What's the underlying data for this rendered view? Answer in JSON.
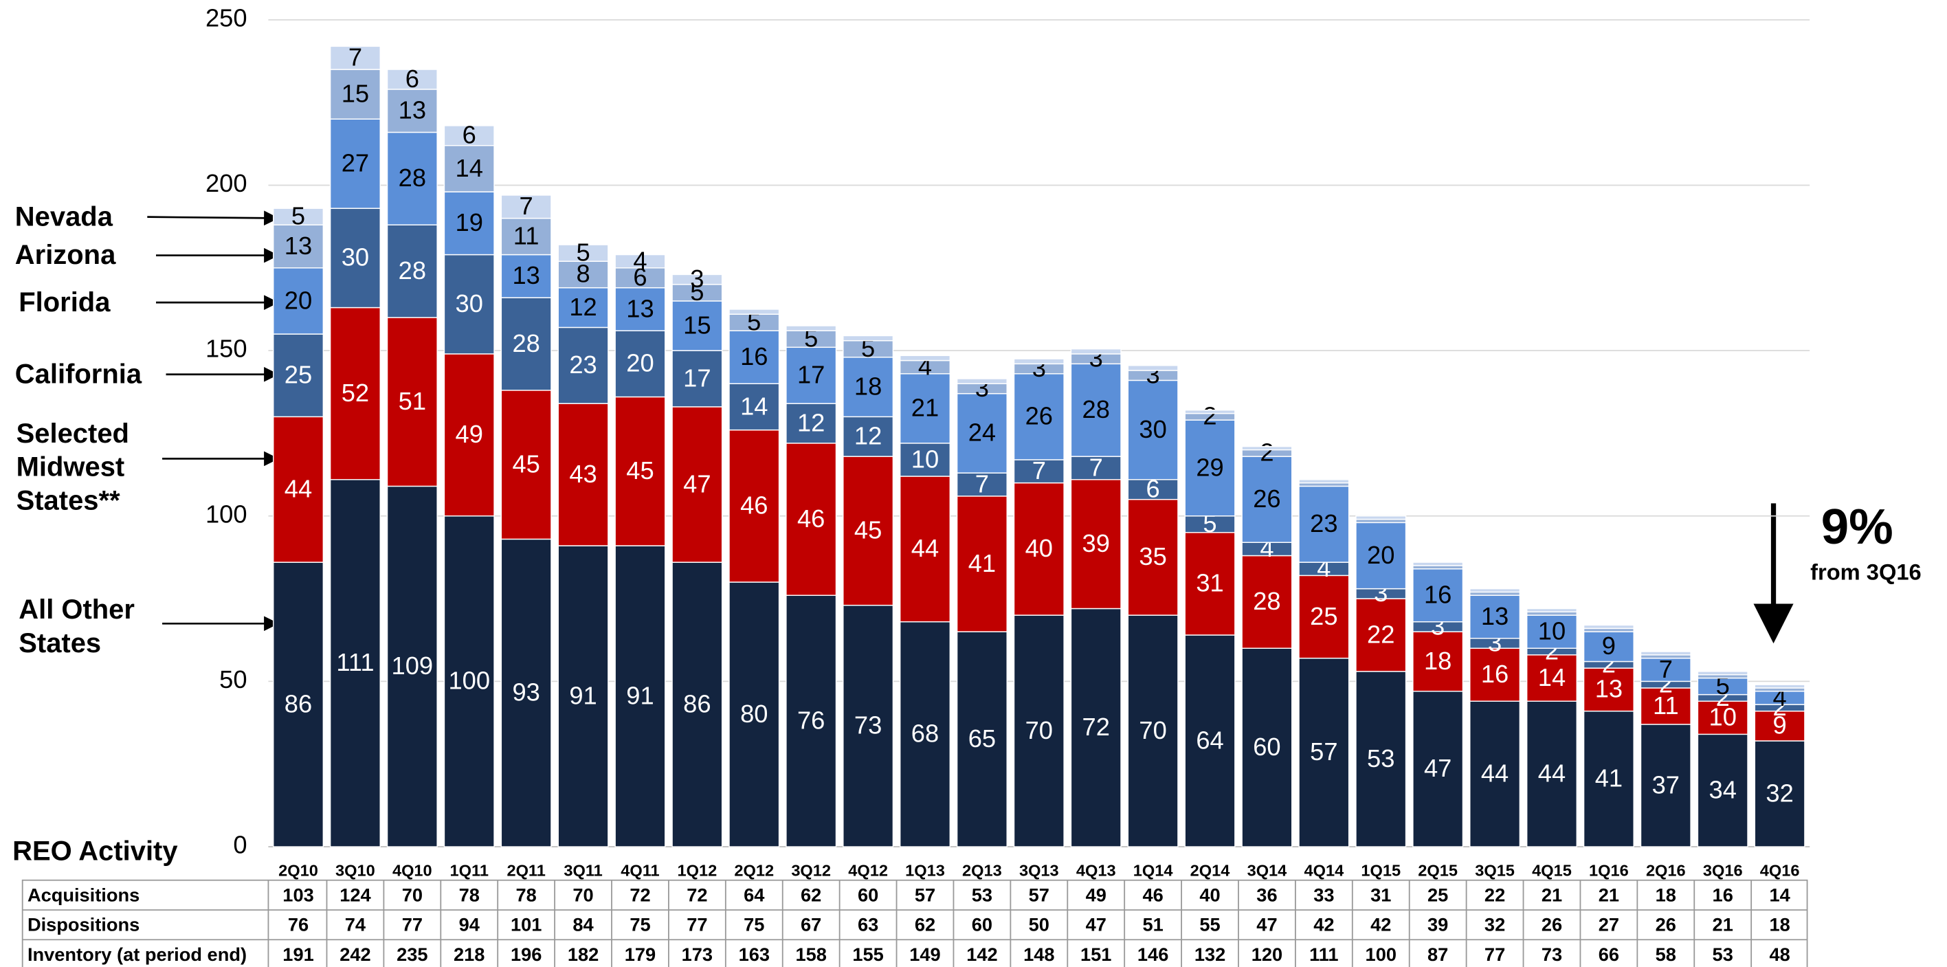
{
  "chart_data": {
    "type": "stacked_bar",
    "categories": [
      "2Q10",
      "3Q10",
      "4Q10",
      "1Q11",
      "2Q11",
      "3Q11",
      "4Q11",
      "1Q12",
      "2Q12",
      "3Q12",
      "4Q12",
      "1Q13",
      "2Q13",
      "3Q13",
      "4Q13",
      "1Q14",
      "2Q14",
      "3Q14",
      "4Q14",
      "1Q15",
      "2Q15",
      "3Q15",
      "4Q15",
      "1Q16",
      "2Q16",
      "3Q16",
      "4Q16"
    ],
    "series": [
      {
        "name": "All Other States",
        "color": "#13243f",
        "label_color": "#ffffff",
        "values": [
          86,
          111,
          109,
          100,
          93,
          91,
          91,
          86,
          80,
          76,
          73,
          68,
          65,
          70,
          72,
          70,
          64,
          60,
          57,
          53,
          47,
          44,
          44,
          41,
          37,
          34,
          32
        ]
      },
      {
        "name": "Selected Midwest States**",
        "color": "#c00000",
        "label_color": "#ffffff",
        "values": [
          44,
          52,
          51,
          49,
          45,
          43,
          45,
          47,
          46,
          46,
          45,
          44,
          41,
          40,
          39,
          35,
          31,
          28,
          25,
          22,
          18,
          16,
          14,
          13,
          11,
          10,
          9
        ]
      },
      {
        "name": "California",
        "color": "#3b6296",
        "label_color": "#ffffff",
        "values": [
          25,
          30,
          28,
          30,
          28,
          23,
          20,
          17,
          14,
          12,
          12,
          10,
          7,
          7,
          7,
          6,
          5,
          4,
          4,
          3,
          3,
          3,
          2,
          2,
          2,
          2,
          2
        ]
      },
      {
        "name": "Florida",
        "color": "#5b8fd8",
        "label_color": "#000000",
        "values": [
          20,
          27,
          28,
          19,
          13,
          12,
          13,
          15,
          16,
          17,
          18,
          21,
          24,
          26,
          28,
          30,
          29,
          26,
          23,
          20,
          16,
          13,
          10,
          9,
          7,
          5,
          4
        ]
      },
      {
        "name": "Arizona",
        "color": "#95b0d8",
        "label_color": "#000000",
        "values": [
          13,
          15,
          13,
          14,
          11,
          8,
          6,
          5,
          5,
          5,
          5,
          4,
          3,
          3,
          3,
          3,
          2,
          2,
          1,
          1,
          1,
          1,
          1,
          1,
          1,
          1,
          1
        ]
      },
      {
        "name": "Nevada",
        "color": "#c8d7ef",
        "label_color": "#000000",
        "values": [
          5,
          7,
          6,
          6,
          7,
          5,
          4,
          3,
          1.5,
          1.5,
          1.5,
          1.5,
          1.5,
          1.5,
          1.5,
          1.5,
          1,
          1,
          1,
          1,
          1,
          1,
          1,
          1,
          1,
          1,
          1
        ]
      }
    ],
    "ylim": [
      0,
      250
    ],
    "yticks": [
      0,
      50,
      100,
      150,
      200,
      250
    ],
    "grid": true,
    "annotation": {
      "value": "9%",
      "text": "from 3Q16"
    }
  },
  "table": {
    "title": "REO Activity",
    "rows": [
      {
        "label": "Acquisitions",
        "values": [
          103,
          124,
          70,
          78,
          78,
          70,
          72,
          72,
          64,
          62,
          60,
          57,
          53,
          57,
          49,
          46,
          40,
          36,
          33,
          31,
          25,
          22,
          21,
          21,
          18,
          16,
          14
        ]
      },
      {
        "label": "Dispositions",
        "values": [
          76,
          74,
          77,
          94,
          101,
          84,
          75,
          77,
          75,
          67,
          63,
          62,
          60,
          50,
          47,
          51,
          55,
          47,
          42,
          42,
          39,
          32,
          26,
          27,
          26,
          21,
          18
        ]
      },
      {
        "label": "Inventory (at period end)",
        "values": [
          191,
          242,
          235,
          218,
          196,
          182,
          179,
          173,
          163,
          158,
          155,
          149,
          142,
          148,
          151,
          146,
          132,
          120,
          111,
          100,
          87,
          77,
          73,
          66,
          58,
          53,
          48
        ]
      }
    ]
  }
}
